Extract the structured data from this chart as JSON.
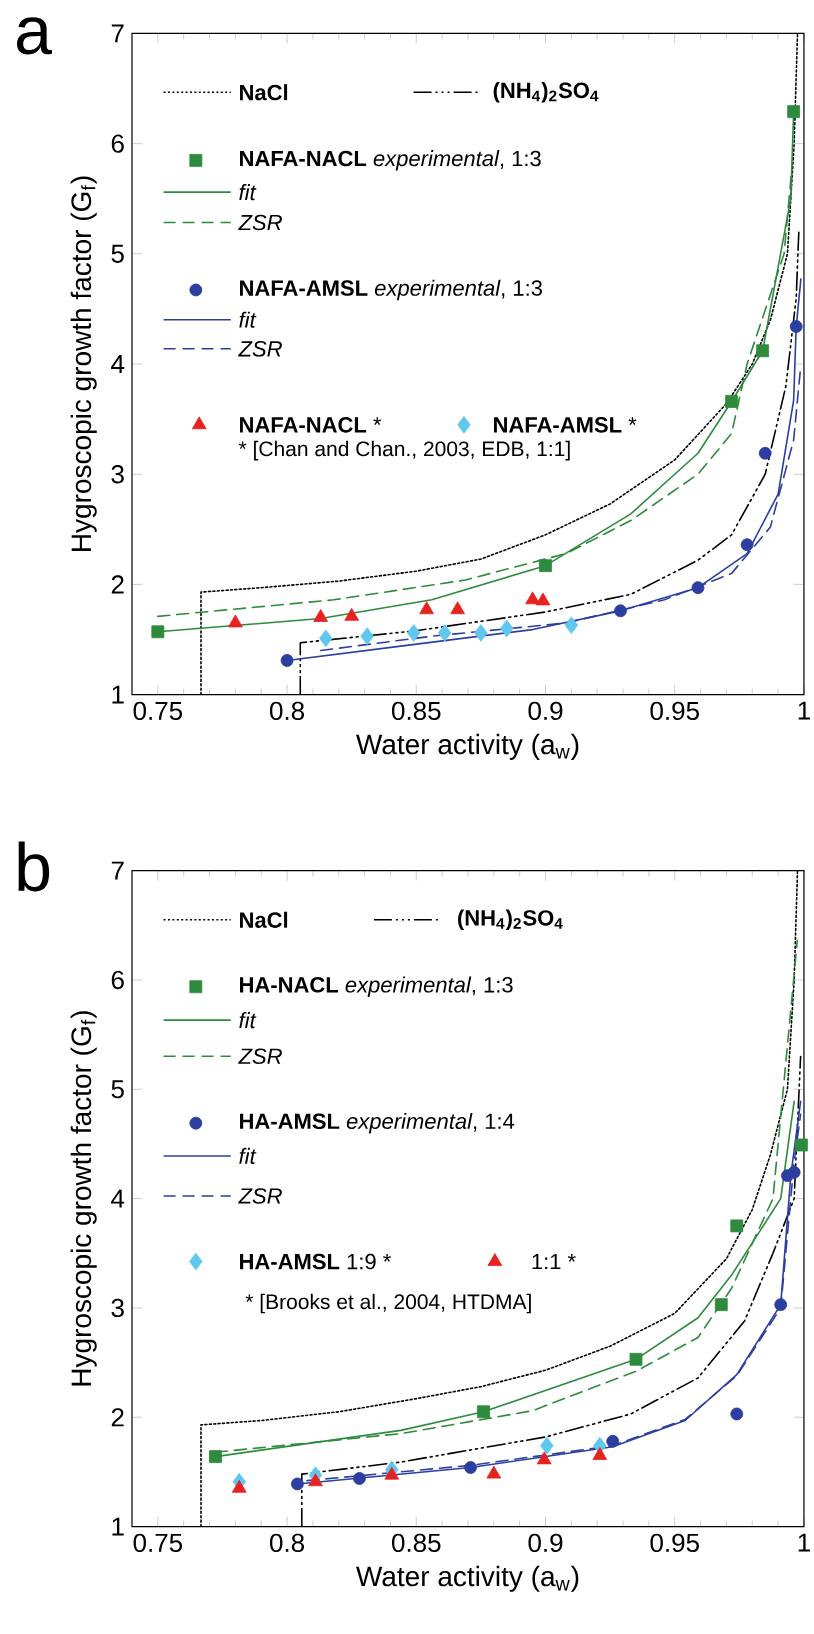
{
  "chart_data": [
    {
      "type": "line",
      "title": "a",
      "xlabel": "Water activity (a$_{w}$)",
      "ylabel": "Hygroscopic growth factor (G$_{f}$)",
      "xlim": [
        0.74,
        1.0
      ],
      "ylim": [
        1,
        7
      ],
      "xticks": [
        0.75,
        0.8,
        0.85,
        0.9,
        0.95,
        1
      ],
      "yticks": [
        1,
        2,
        3,
        4,
        5,
        6,
        7
      ],
      "legend": "top left",
      "annotations": [
        "* [Chan and Chan., 2003, EDB, 1:1]"
      ],
      "series": [
        {
          "name": "**NaCl**",
          "line_style": "dotted",
          "color": "#000000",
          "x": [
            0.7667,
            0.7667,
            0.79,
            0.82,
            0.85,
            0.875,
            0.9,
            0.925,
            0.95,
            0.97,
            0.98,
            0.987,
            0.9936,
            0.9962,
            0.9975
          ],
          "values": [
            1.0,
            1.93,
            1.97,
            2.03,
            2.12,
            2.23,
            2.45,
            2.73,
            3.13,
            3.64,
            4.0,
            4.4,
            5.0,
            6.0,
            7.0
          ]
        },
        {
          "name": "**(NH$_{4}$)$_{2}$SO$_{4}$**",
          "line_style": "dashdot",
          "color": "#000000",
          "x": [
            0.8051,
            0.8051,
            0.85,
            0.9,
            0.933,
            0.959,
            0.972,
            0.985,
            0.993,
            0.997,
            0.998
          ],
          "values": [
            1.0,
            1.47,
            1.58,
            1.75,
            1.91,
            2.22,
            2.45,
            3.0,
            3.8,
            4.6,
            5.2
          ]
        },
        {
          "name": "**NAFA-NACL** *experimental*, 1:3",
          "type": "scatter",
          "marker": "square",
          "color": "#2e8b3e",
          "x": [
            0.75,
            0.9,
            0.972,
            0.984,
            0.996
          ],
          "values": [
            1.57,
            2.17,
            3.66,
            4.12,
            6.29
          ]
        },
        {
          "name": "*fit*",
          "line_style": "solid",
          "color": "#2e8b3e",
          "x": [
            0.75,
            0.813,
            0.856,
            0.9,
            0.933,
            0.959,
            0.972,
            0.984,
            0.9949,
            0.996
          ],
          "values": [
            1.57,
            1.69,
            1.86,
            2.17,
            2.64,
            3.19,
            3.66,
            4.12,
            5.5,
            6.29
          ]
        },
        {
          "name": "*ZSR*",
          "line_style": "dashed",
          "color": "#2e8b3e",
          "x": [
            0.75,
            0.818,
            0.869,
            0.908,
            0.933,
            0.959,
            0.972,
            0.978,
            0.9923,
            0.995
          ],
          "values": [
            1.71,
            1.86,
            2.04,
            2.28,
            2.58,
            3.0,
            3.37,
            4.0,
            5.0,
            5.7
          ]
        },
        {
          "name": "**NAFA-AMSL** *experimental*, 1:3",
          "type": "scatter",
          "marker": "circle",
          "color": "#2c3fa0",
          "x": [
            0.8,
            0.929,
            0.959,
            0.978,
            0.985,
            0.997
          ],
          "values": [
            1.31,
            1.76,
            1.97,
            2.36,
            3.19,
            4.34
          ]
        },
        {
          "name": "*fit*",
          "line_style": "solid",
          "color": "#2c3fa0",
          "x": [
            0.8,
            0.844,
            0.895,
            0.929,
            0.959,
            0.978,
            0.99,
            0.996,
            0.997,
            0.9988
          ],
          "values": [
            1.31,
            1.44,
            1.59,
            1.76,
            1.97,
            2.28,
            2.82,
            3.67,
            4.34,
            4.77
          ]
        },
        {
          "name": "*ZSR*",
          "line_style": "dashed",
          "color": "#2c3fa0",
          "x": [
            0.813,
            0.856,
            0.908,
            0.946,
            0.972,
            0.987,
            0.996,
            0.9987
          ],
          "values": [
            1.4,
            1.53,
            1.65,
            1.86,
            2.1,
            2.52,
            3.31,
            3.97
          ]
        },
        {
          "name": "**NAFA-NACL** *",
          "type": "scatter",
          "marker": "triangle",
          "color": "#e52421",
          "x": [
            0.78,
            0.813,
            0.825,
            0.854,
            0.866,
            0.895,
            0.899
          ],
          "values": [
            1.65,
            1.7,
            1.71,
            1.77,
            1.77,
            1.86,
            1.85
          ]
        },
        {
          "name": "**NAFA-AMSL** *",
          "type": "scatter",
          "marker": "diamond",
          "color": "#5fc8ec",
          "x": [
            0.815,
            0.831,
            0.849,
            0.861,
            0.875,
            0.885,
            0.91
          ],
          "values": [
            1.51,
            1.53,
            1.56,
            1.56,
            1.56,
            1.6,
            1.63
          ]
        }
      ]
    },
    {
      "type": "line",
      "title": "b",
      "xlabel": "Water activity (a$_{w}$)",
      "ylabel": "Hygroscopic growth factor (G$_{f}$)",
      "xlim": [
        0.74,
        1.0
      ],
      "ylim": [
        1,
        7
      ],
      "xticks": [
        0.75,
        0.8,
        0.85,
        0.9,
        0.95,
        1
      ],
      "yticks": [
        1,
        2,
        3,
        4,
        5,
        6,
        7
      ],
      "legend": "top left",
      "annotations": [
        "* [Brooks et al., 2004, HTDMA]"
      ],
      "series": [
        {
          "name": "**NaCl**",
          "line_style": "dotted",
          "color": "#000000",
          "x": [
            0.7667,
            0.7667,
            0.79,
            0.82,
            0.85,
            0.875,
            0.9,
            0.925,
            0.95,
            0.97,
            0.98,
            0.987,
            0.9936,
            0.9962,
            0.9975
          ],
          "values": [
            1.0,
            1.93,
            1.97,
            2.05,
            2.17,
            2.28,
            2.43,
            2.65,
            2.95,
            3.45,
            3.9,
            4.4,
            5.0,
            6.0,
            7.0
          ]
        },
        {
          "name": "**(NH$_{4}$)$_{2}$SO$_{4}$**",
          "line_style": "dashdot",
          "color": "#000000",
          "x": [
            0.8057,
            0.8057,
            0.844,
            0.9,
            0.933,
            0.959,
            0.977,
            0.988,
            0.9962,
            0.9987
          ],
          "values": [
            1.0,
            1.48,
            1.59,
            1.82,
            2.03,
            2.36,
            2.88,
            3.5,
            4.0,
            5.3
          ]
        },
        {
          "name": "**HA-NACL** *experimental*, 1:3",
          "type": "scatter",
          "marker": "square",
          "color": "#2e8b3e",
          "x": [
            0.7723,
            0.876,
            0.935,
            0.968,
            0.974,
            0.999
          ],
          "values": [
            1.64,
            2.05,
            2.53,
            3.03,
            3.75,
            4.49
          ]
        },
        {
          "name": "*fit*",
          "line_style": "solid",
          "color": "#2e8b3e",
          "x": [
            0.7723,
            0.844,
            0.876,
            0.935,
            0.959,
            0.972,
            0.991,
            0.9962
          ],
          "values": [
            1.64,
            1.88,
            2.05,
            2.53,
            2.91,
            3.3,
            4.0,
            4.89
          ]
        },
        {
          "name": "*ZSR*",
          "line_style": "dashed",
          "color": "#2e8b3e",
          "x": [
            0.7723,
            0.844,
            0.895,
            0.935,
            0.959,
            0.972,
            0.988,
            0.996,
            0.9974
          ],
          "values": [
            1.68,
            1.85,
            2.06,
            2.42,
            2.73,
            3.18,
            4.0,
            6.0,
            6.36
          ]
        },
        {
          "name": "**HA-AMSL** *experimental*, 1:4",
          "type": "scatter",
          "marker": "circle",
          "color": "#2c3fa0",
          "x": [
            0.804,
            0.828,
            0.871,
            0.926,
            0.974,
            0.991,
            0.9936,
            0.9962
          ],
          "values": [
            1.39,
            1.44,
            1.54,
            1.78,
            2.03,
            3.03,
            4.21,
            4.24
          ]
        },
        {
          "name": "*fit*",
          "line_style": "solid",
          "color": "#2c3fa0",
          "x": [
            0.804,
            0.871,
            0.926,
            0.954,
            0.974,
            0.991,
            0.9949,
            0.9987
          ],
          "values": [
            1.39,
            1.54,
            1.73,
            1.97,
            2.39,
            3.03,
            4.21,
            4.89
          ]
        },
        {
          "name": "*ZSR*",
          "line_style": "dashed",
          "color": "#2c3fa0",
          "x": [
            0.8077,
            0.871,
            0.926,
            0.954,
            0.974,
            0.991,
            0.9962,
            0.9987
          ],
          "values": [
            1.42,
            1.56,
            1.74,
            1.98,
            2.38,
            3.0,
            4.34,
            4.77
          ]
        },
        {
          "name": "**HA-AMSL** 1:9 *",
          "type": "scatter",
          "marker": "diamond",
          "color": "#5fc8ec",
          "x": [
            0.7815,
            0.811,
            0.8405,
            0.9005,
            0.921
          ],
          "values": [
            1.41,
            1.47,
            1.52,
            1.74,
            1.74
          ]
        },
        {
          "name": "1:1 *",
          "type": "scatter",
          "marker": "triangle",
          "color": "#e52421",
          "x": [
            0.7815,
            0.811,
            0.8405,
            0.88,
            0.8995,
            0.921
          ],
          "values": [
            1.35,
            1.41,
            1.47,
            1.48,
            1.61,
            1.65
          ]
        }
      ]
    }
  ]
}
